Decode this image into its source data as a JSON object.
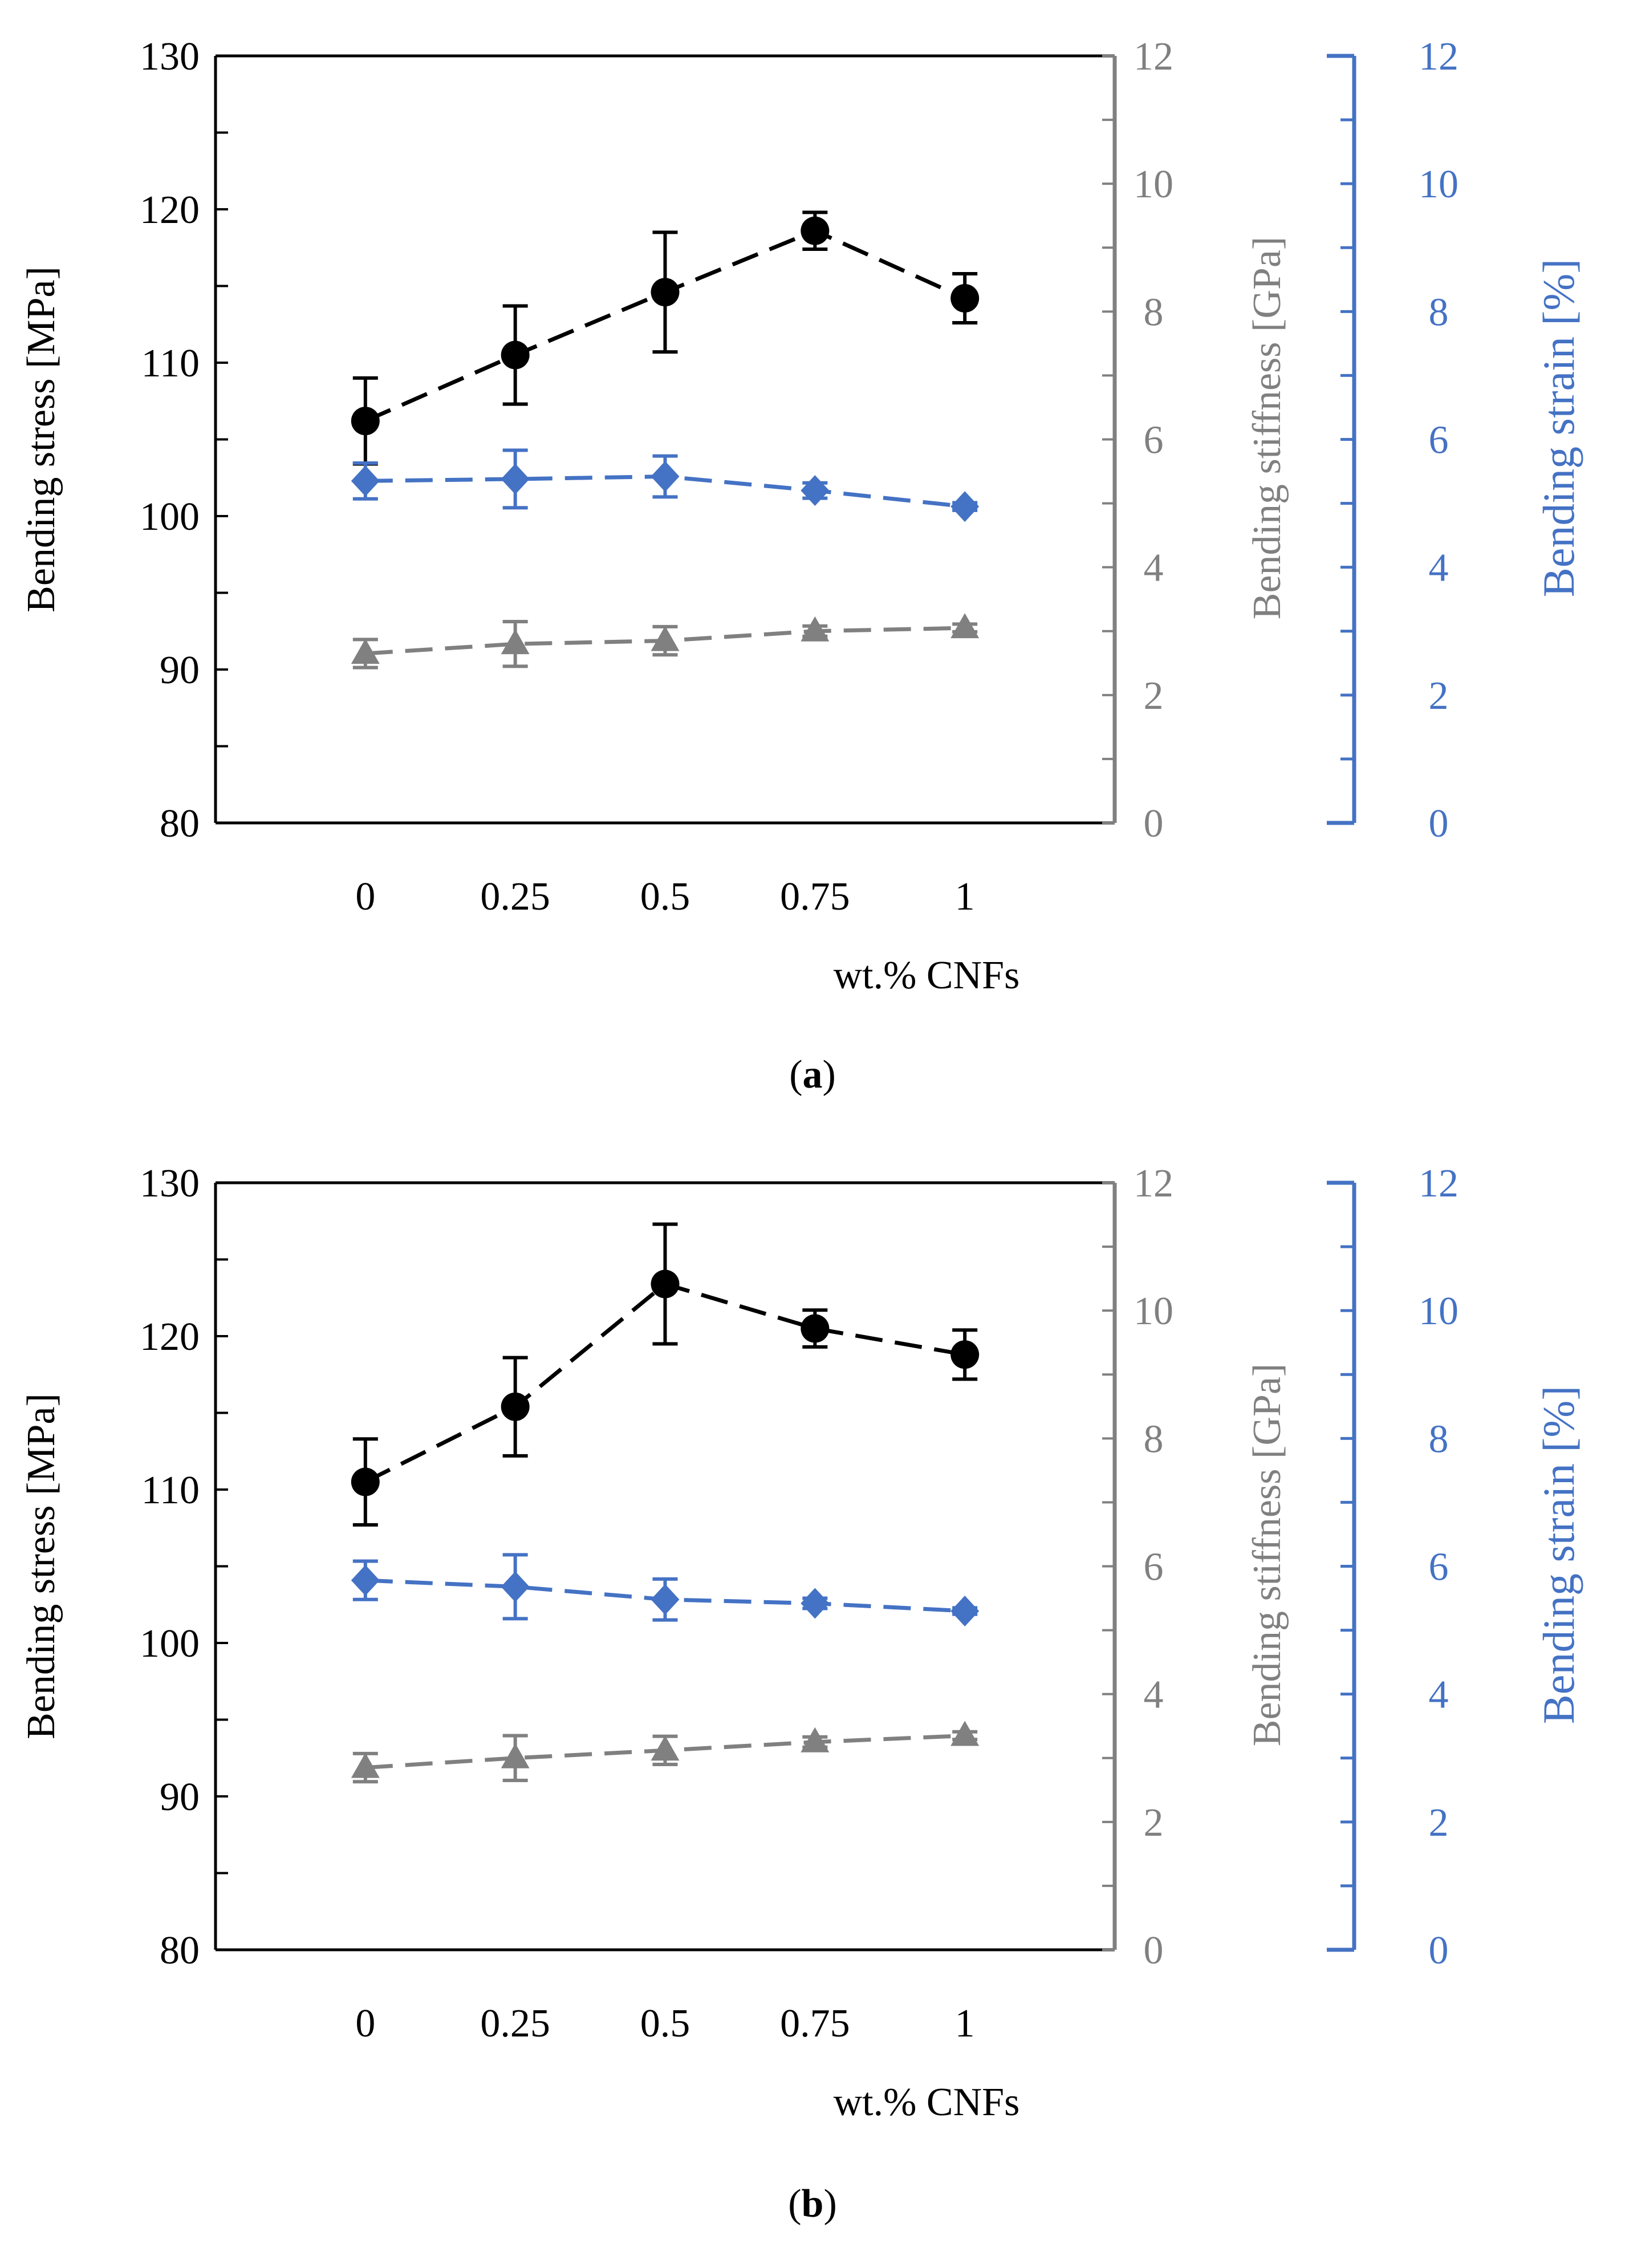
{
  "chart_data": [
    {
      "type": "line",
      "panel": "a",
      "caption_letter": "a",
      "x": [
        0,
        0.25,
        0.5,
        0.75,
        1
      ],
      "xtick_labels": [
        "0",
        "0.25",
        "0.5",
        "0.75",
        "1"
      ],
      "xlabel": "wt.% CNFs",
      "xlim": [
        -0.25,
        1.25
      ],
      "axes": {
        "left": {
          "label": "Bending stress [MPa]",
          "ylim": [
            80,
            130
          ],
          "ticks": [
            "80",
            "90",
            "100",
            "110",
            "120",
            "130"
          ],
          "color": "#000000"
        },
        "gray": {
          "label": "Bending stiffness [GPa]",
          "ylim": [
            0,
            12
          ],
          "ticks": [
            "0",
            "2",
            "4",
            "6",
            "8",
            "10",
            "12"
          ],
          "color": "#808080"
        },
        "blue": {
          "label": "Bending strain [%]",
          "ylim": [
            0,
            12
          ],
          "ticks": [
            "0",
            "2",
            "4",
            "6",
            "8",
            "10",
            "12"
          ],
          "color": "#4472C4"
        }
      },
      "series": [
        {
          "name": "Bending stress",
          "axis": "left",
          "marker": "circle",
          "color": "#000000",
          "values": [
            106.2,
            110.5,
            114.6,
            118.6,
            114.2
          ],
          "errors": [
            2.8,
            3.2,
            3.9,
            1.2,
            1.6
          ]
        },
        {
          "name": "Bending strain",
          "axis": "blue",
          "marker": "diamond",
          "color": "#4472C4",
          "values": [
            5.35,
            5.38,
            5.42,
            5.2,
            4.95
          ],
          "errors": [
            0.28,
            0.45,
            0.32,
            0.12,
            0.06
          ]
        },
        {
          "name": "Bending stiffness",
          "axis": "gray",
          "marker": "triangle",
          "color": "#808080",
          "values": [
            2.65,
            2.8,
            2.85,
            3.0,
            3.05
          ],
          "errors": [
            0.22,
            0.35,
            0.22,
            0.08,
            0.06
          ]
        }
      ]
    },
    {
      "type": "line",
      "panel": "b",
      "caption_letter": "b",
      "x": [
        0,
        0.25,
        0.5,
        0.75,
        1
      ],
      "xtick_labels": [
        "0",
        "0.25",
        "0.5",
        "0.75",
        "1"
      ],
      "xlabel": "wt.% CNFs",
      "xlim": [
        -0.25,
        1.25
      ],
      "axes": {
        "left": {
          "label": "Bending stress [MPa]",
          "ylim": [
            80,
            130
          ],
          "ticks": [
            "80",
            "90",
            "100",
            "110",
            "120",
            "130"
          ],
          "color": "#000000"
        },
        "gray": {
          "label": "Bending stiffness [GPa]",
          "ylim": [
            0,
            12
          ],
          "ticks": [
            "0",
            "2",
            "4",
            "6",
            "8",
            "10",
            "12"
          ],
          "color": "#808080"
        },
        "blue": {
          "label": "Bending strain [%]",
          "ylim": [
            0,
            12
          ],
          "ticks": [
            "0",
            "2",
            "4",
            "6",
            "8",
            "10",
            "12"
          ],
          "color": "#4472C4"
        }
      },
      "series": [
        {
          "name": "Bending stress",
          "axis": "left",
          "marker": "circle",
          "color": "#000000",
          "values": [
            110.5,
            115.4,
            123.4,
            120.5,
            118.8
          ],
          "errors": [
            2.8,
            3.2,
            3.9,
            1.2,
            1.6
          ]
        },
        {
          "name": "Bending strain",
          "axis": "blue",
          "marker": "diamond",
          "color": "#4472C4",
          "values": [
            5.78,
            5.68,
            5.48,
            5.42,
            5.3
          ],
          "errors": [
            0.3,
            0.5,
            0.32,
            0.08,
            0.05
          ]
        },
        {
          "name": "Bending stiffness",
          "axis": "gray",
          "marker": "triangle",
          "color": "#808080",
          "values": [
            2.85,
            3.0,
            3.12,
            3.25,
            3.35
          ],
          "errors": [
            0.22,
            0.35,
            0.22,
            0.08,
            0.06
          ]
        }
      ]
    }
  ]
}
